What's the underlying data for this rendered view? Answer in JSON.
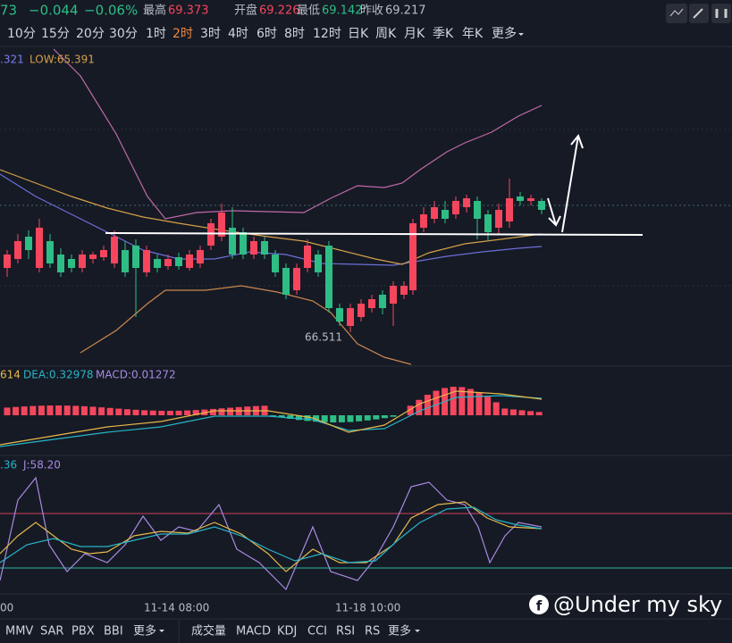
{
  "header": {
    "price": "73",
    "change": "−0.044",
    "change_pct": "−0.06%",
    "stats": [
      {
        "label": "最高",
        "value": "69.373"
      },
      {
        "label": "开盘",
        "value": "69.226"
      },
      {
        "label": "最低",
        "value": "69.142"
      },
      {
        "label": "昨收",
        "value": "69.217"
      }
    ]
  },
  "timeframes": [
    "10分",
    "15分",
    "20分",
    "30分",
    "1时",
    "2时",
    "3时",
    "4时",
    "6时",
    "8时",
    "12时",
    "日K",
    "周K",
    "月K",
    "季K",
    "年K",
    "更多"
  ],
  "main_legend": [
    ".321",
    "LOW:65.391"
  ],
  "low_marker": "66.511",
  "macd_legend": [
    "614",
    "DEA:0.32978",
    "MACD:0.01272"
  ],
  "kdj_legend": [
    ".36",
    "J:58.20"
  ],
  "time_labels": [
    "00",
    "11-14 08:00",
    "11-18 10:00"
  ],
  "main_indicators": [
    "MMV",
    "SAR",
    "PBX",
    "BBI",
    "更多"
  ],
  "sub_indicators": [
    "成交量",
    "MACD",
    "KDJ",
    "CCI",
    "RSI",
    "RS",
    "更多"
  ],
  "watermark": "@Under my sky"
}
